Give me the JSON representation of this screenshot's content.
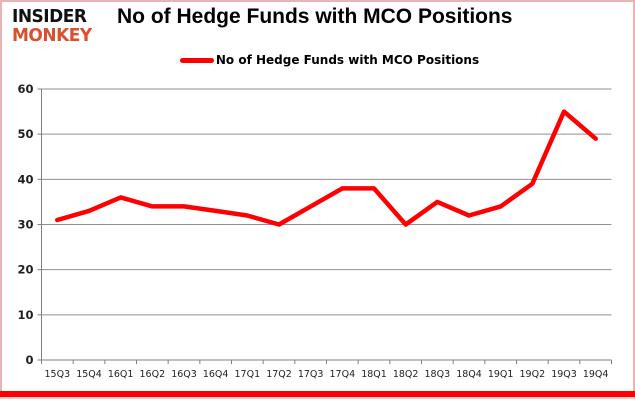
{
  "header": {
    "logo_line1": "INSIDER",
    "logo_line2": "MONKEY",
    "title": "No of Hedge Funds with MCO Positions"
  },
  "legend": {
    "label": "No of Hedge Funds with MCO Positions"
  },
  "colors": {
    "line": "#fe0000",
    "logo_accent": "#d9502e",
    "logo_text": "#111111",
    "grid": "#909090",
    "axis": "#808080",
    "label_text": "#1f1f1f",
    "bottom_bar": "#fe0000",
    "frame_border": "#e9b4b4"
  },
  "chart_data": {
    "type": "line",
    "title": "No of Hedge Funds with MCO Positions",
    "xlabel": "",
    "ylabel": "",
    "categories": [
      "15Q3",
      "15Q4",
      "16Q1",
      "16Q2",
      "16Q3",
      "16Q4",
      "17Q1",
      "17Q2",
      "17Q3",
      "17Q4",
      "18Q1",
      "18Q2",
      "18Q3",
      "18Q4",
      "19Q1",
      "19Q2",
      "19Q3",
      "19Q4"
    ],
    "series": [
      {
        "name": "No of Hedge Funds with MCO Positions",
        "values": [
          31,
          33,
          36,
          34,
          34,
          33,
          32,
          30,
          34,
          38,
          38,
          30,
          35,
          32,
          34,
          39,
          55,
          49
        ]
      }
    ],
    "ylim": [
      0,
      60
    ],
    "ytick_interval": 10,
    "grid": true,
    "legend_position": "top"
  }
}
